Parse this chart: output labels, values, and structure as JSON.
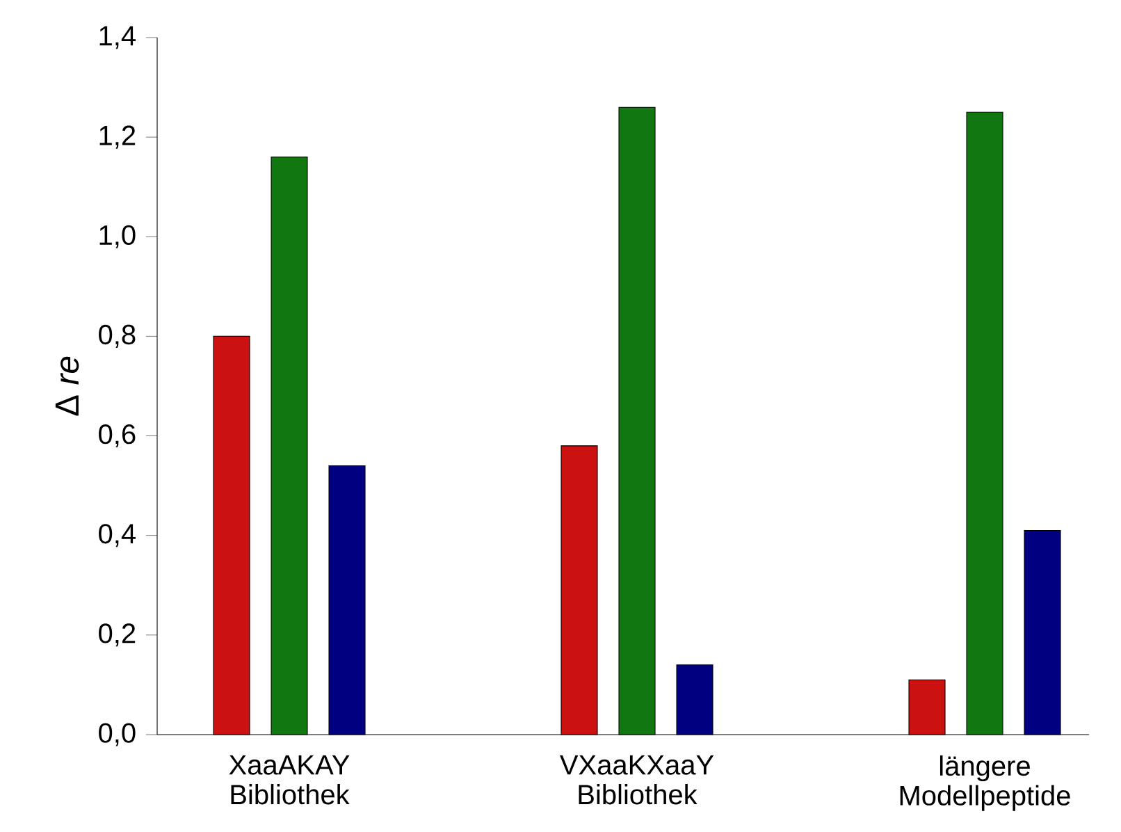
{
  "chart_data": {
    "type": "bar",
    "ylabel": "Δ *re*",
    "categories": [
      "XaaAKAY Bibliothek",
      "VXaaKXaaY Bibliothek",
      "längere Modellpeptide"
    ],
    "series": [
      {
        "color": "#cc1111",
        "values": [
          0.8,
          0.58,
          0.11
        ]
      },
      {
        "color": "#117711",
        "values": [
          1.16,
          1.26,
          1.25
        ]
      },
      {
        "color": "#000080",
        "values": [
          0.54,
          0.14,
          0.41
        ]
      }
    ],
    "ylim": [
      0,
      1.4
    ],
    "yticks": [
      {
        "value": 0,
        "label": "0,0"
      },
      {
        "value": 0.2,
        "label": "0,2"
      },
      {
        "value": 0.4,
        "label": "0,4"
      },
      {
        "value": 0.6,
        "label": "0,6"
      },
      {
        "value": 0.8,
        "label": "0,8"
      },
      {
        "value": 1.0,
        "label": "1,0"
      },
      {
        "value": 1.2,
        "label": "1,2"
      },
      {
        "value": 1.4,
        "label": "1,4"
      }
    ],
    "grid": false
  }
}
